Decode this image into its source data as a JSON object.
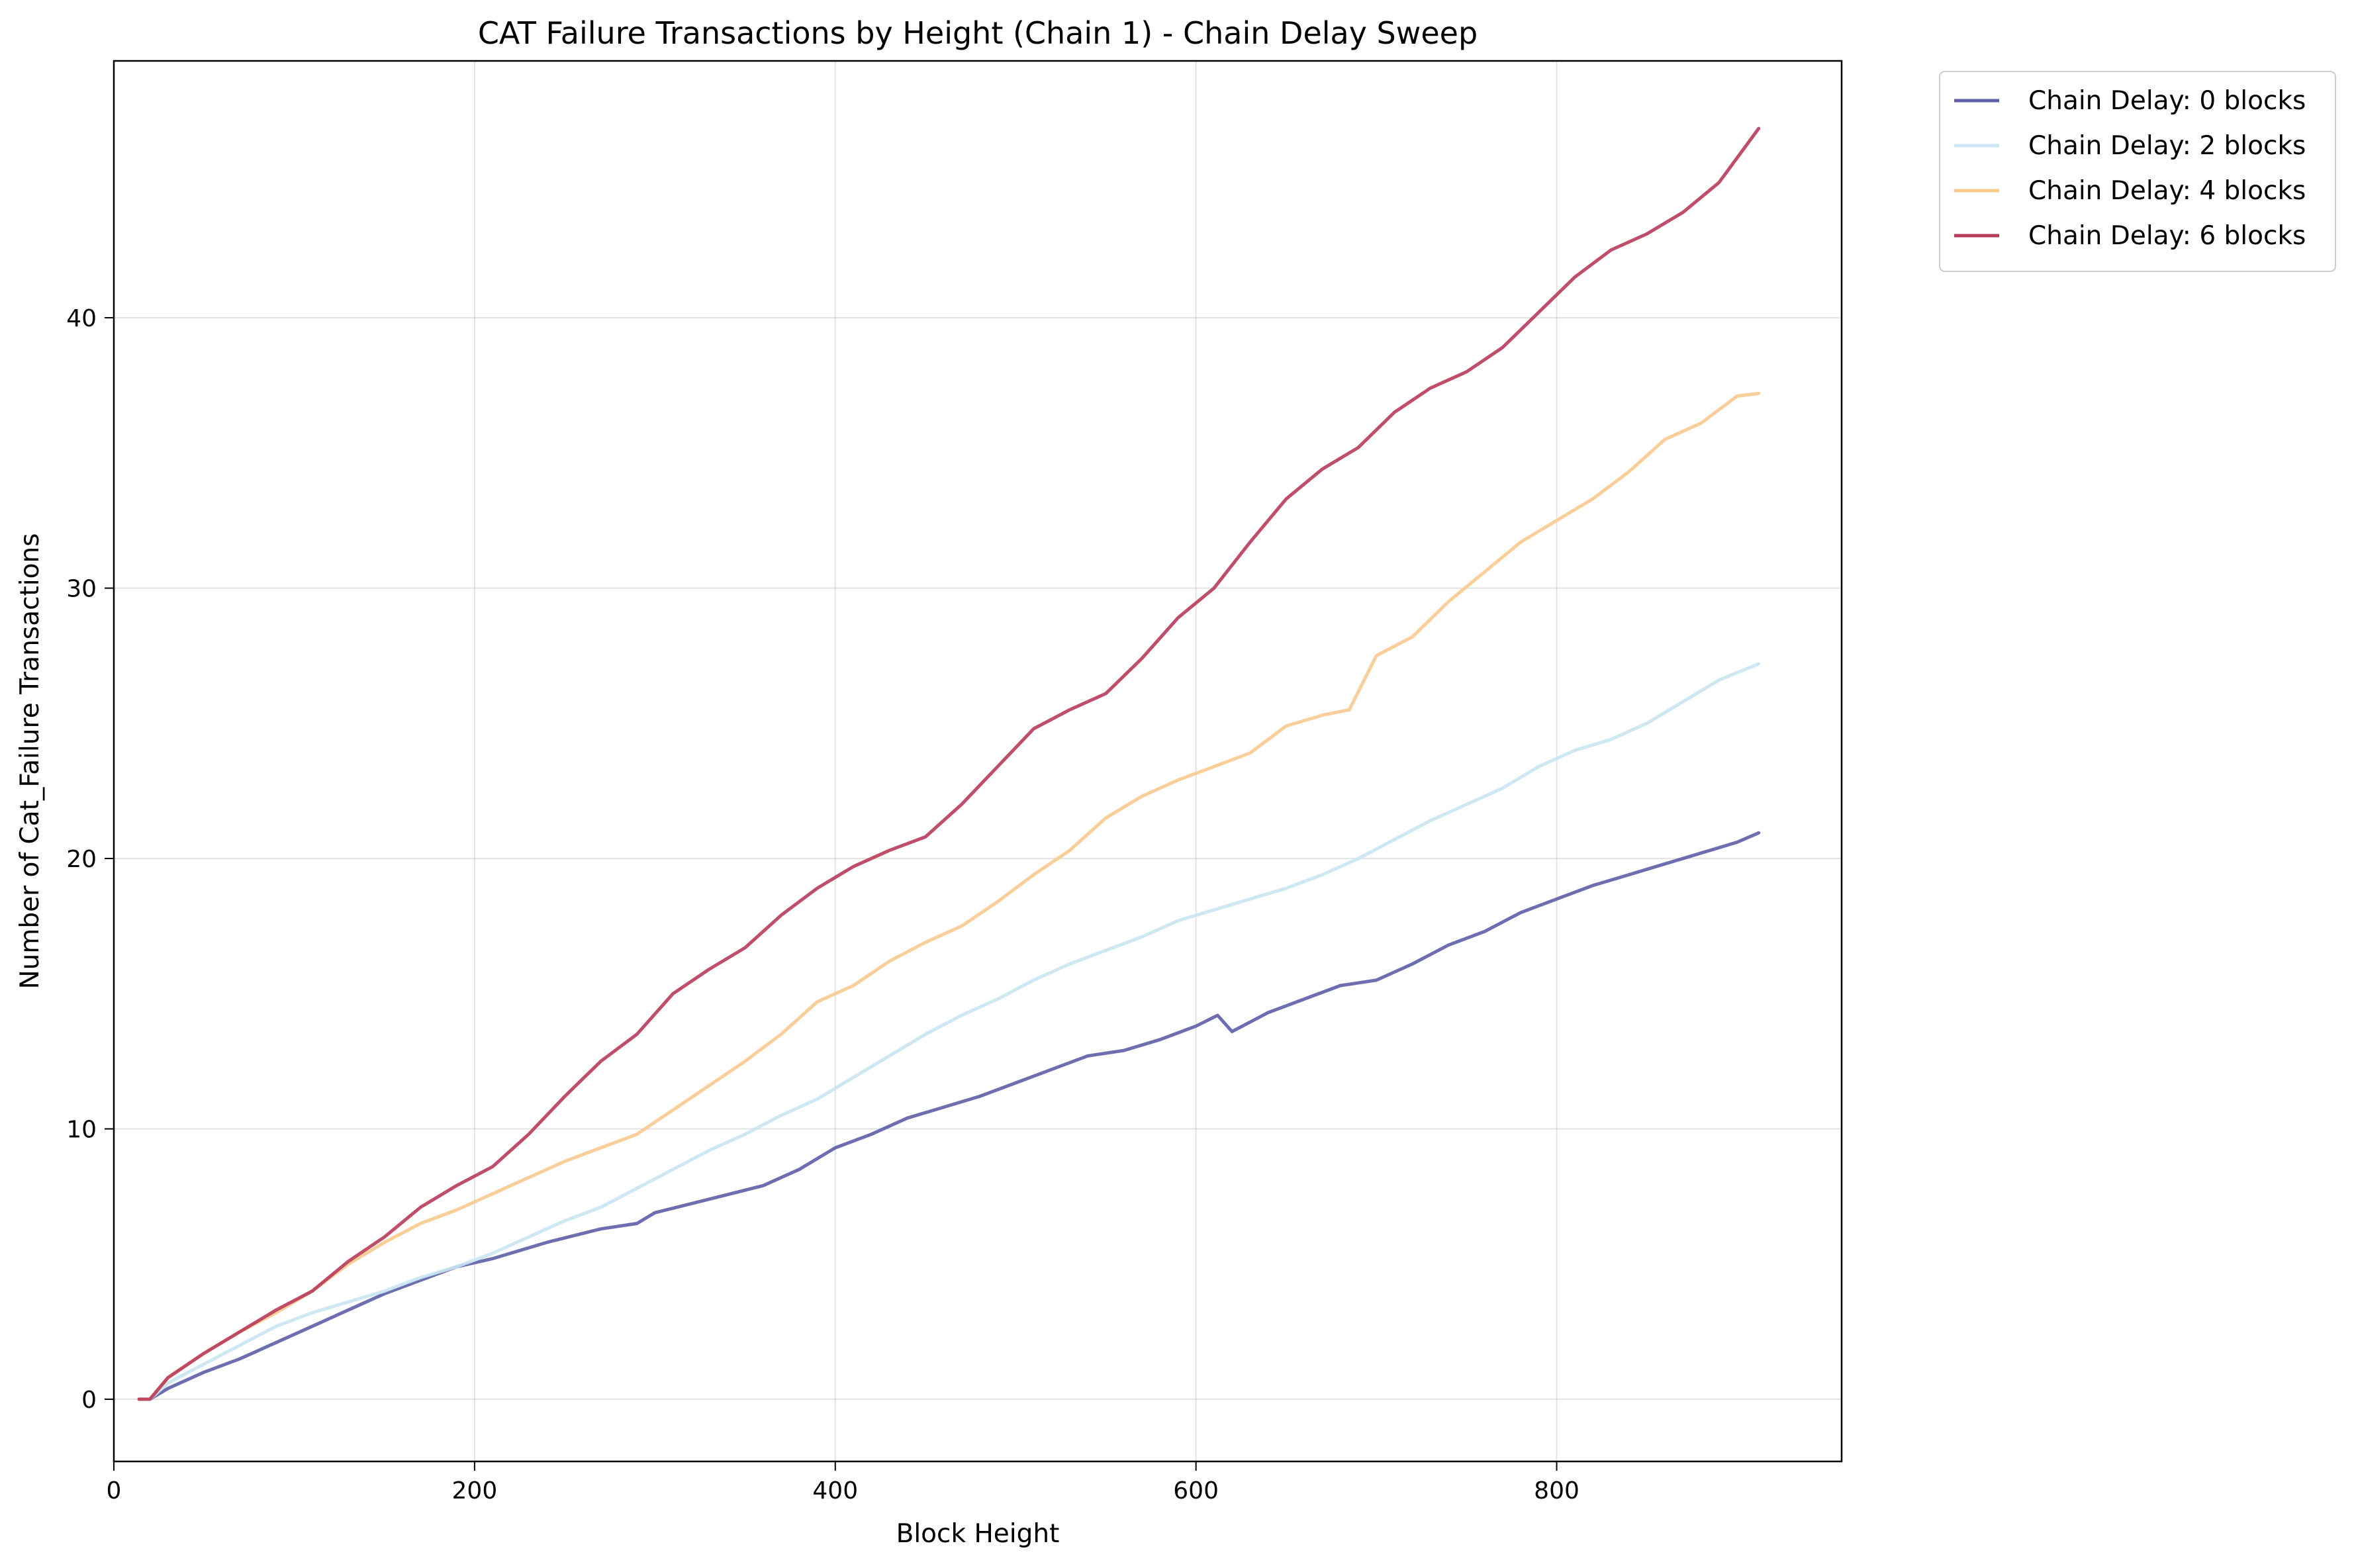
{
  "chart_data": {
    "type": "line",
    "title": "CAT Failure Transactions by Height (Chain 1) - Chain Delay Sweep",
    "xlabel": "Block Height",
    "ylabel": "Number of Cat_Failure Transactions",
    "xlim": [
      0,
      958
    ],
    "ylim": [
      -2.3,
      49.5
    ],
    "xticks": [
      0,
      200,
      400,
      600,
      800
    ],
    "yticks": [
      0,
      10,
      20,
      30,
      40
    ],
    "grid": true,
    "legend_position": "outside-top-right",
    "series": [
      {
        "name": "Chain Delay: 0 blocks",
        "color": "#5c5ea6",
        "points": [
          [
            14,
            0
          ],
          [
            20,
            0
          ],
          [
            30,
            0.4
          ],
          [
            50,
            1.0
          ],
          [
            70,
            1.5
          ],
          [
            90,
            2.1
          ],
          [
            110,
            2.7
          ],
          [
            130,
            3.3
          ],
          [
            150,
            3.9
          ],
          [
            170,
            4.4
          ],
          [
            190,
            4.9
          ],
          [
            210,
            5.2
          ],
          [
            240,
            5.8
          ],
          [
            270,
            6.3
          ],
          [
            290,
            6.5
          ],
          [
            300,
            6.9
          ],
          [
            330,
            7.4
          ],
          [
            360,
            7.9
          ],
          [
            380,
            8.5
          ],
          [
            400,
            9.3
          ],
          [
            420,
            9.8
          ],
          [
            440,
            10.4
          ],
          [
            460,
            10.8
          ],
          [
            480,
            11.2
          ],
          [
            500,
            11.7
          ],
          [
            520,
            12.2
          ],
          [
            540,
            12.7
          ],
          [
            560,
            12.9
          ],
          [
            580,
            13.3
          ],
          [
            600,
            13.8
          ],
          [
            612,
            14.2
          ],
          [
            620,
            13.6
          ],
          [
            640,
            14.3
          ],
          [
            660,
            14.8
          ],
          [
            680,
            15.3
          ],
          [
            700,
            15.5
          ],
          [
            720,
            16.1
          ],
          [
            740,
            16.8
          ],
          [
            760,
            17.3
          ],
          [
            780,
            18.0
          ],
          [
            800,
            18.5
          ],
          [
            820,
            19.0
          ],
          [
            840,
            19.4
          ],
          [
            860,
            19.8
          ],
          [
            880,
            20.2
          ],
          [
            900,
            20.6
          ],
          [
            912,
            20.95
          ]
        ]
      },
      {
        "name": "Chain Delay: 2 blocks",
        "color": "#c9e6f2",
        "points": [
          [
            14,
            0
          ],
          [
            20,
            0
          ],
          [
            30,
            0.6
          ],
          [
            50,
            1.3
          ],
          [
            70,
            2.0
          ],
          [
            90,
            2.7
          ],
          [
            110,
            3.2
          ],
          [
            130,
            3.6
          ],
          [
            150,
            4.0
          ],
          [
            170,
            4.5
          ],
          [
            190,
            4.9
          ],
          [
            210,
            5.4
          ],
          [
            230,
            6.0
          ],
          [
            250,
            6.6
          ],
          [
            270,
            7.1
          ],
          [
            290,
            7.8
          ],
          [
            310,
            8.5
          ],
          [
            330,
            9.2
          ],
          [
            350,
            9.8
          ],
          [
            370,
            10.5
          ],
          [
            390,
            11.1
          ],
          [
            410,
            11.9
          ],
          [
            430,
            12.7
          ],
          [
            450,
            13.5
          ],
          [
            470,
            14.2
          ],
          [
            490,
            14.8
          ],
          [
            510,
            15.5
          ],
          [
            530,
            16.1
          ],
          [
            550,
            16.6
          ],
          [
            570,
            17.1
          ],
          [
            590,
            17.7
          ],
          [
            610,
            18.1
          ],
          [
            630,
            18.5
          ],
          [
            650,
            18.9
          ],
          [
            670,
            19.4
          ],
          [
            690,
            20.0
          ],
          [
            710,
            20.7
          ],
          [
            730,
            21.4
          ],
          [
            750,
            22.0
          ],
          [
            770,
            22.6
          ],
          [
            790,
            23.4
          ],
          [
            810,
            24.0
          ],
          [
            830,
            24.4
          ],
          [
            850,
            25.0
          ],
          [
            870,
            25.8
          ],
          [
            890,
            26.6
          ],
          [
            912,
            27.2
          ]
        ]
      },
      {
        "name": "Chain Delay: 4 blocks",
        "color": "#f9c98e",
        "points": [
          [
            14,
            0
          ],
          [
            20,
            0
          ],
          [
            30,
            0.8
          ],
          [
            50,
            1.7
          ],
          [
            70,
            2.5
          ],
          [
            90,
            3.2
          ],
          [
            110,
            4.0
          ],
          [
            130,
            5.0
          ],
          [
            150,
            5.8
          ],
          [
            170,
            6.5
          ],
          [
            190,
            7.0
          ],
          [
            210,
            7.6
          ],
          [
            230,
            8.2
          ],
          [
            250,
            8.8
          ],
          [
            270,
            9.3
          ],
          [
            290,
            9.8
          ],
          [
            310,
            10.7
          ],
          [
            330,
            11.6
          ],
          [
            350,
            12.5
          ],
          [
            370,
            13.5
          ],
          [
            390,
            14.7
          ],
          [
            410,
            15.3
          ],
          [
            430,
            16.2
          ],
          [
            450,
            16.9
          ],
          [
            470,
            17.5
          ],
          [
            490,
            18.4
          ],
          [
            510,
            19.4
          ],
          [
            530,
            20.3
          ],
          [
            550,
            21.5
          ],
          [
            570,
            22.3
          ],
          [
            590,
            22.9
          ],
          [
            610,
            23.4
          ],
          [
            630,
            23.9
          ],
          [
            650,
            24.9
          ],
          [
            670,
            25.3
          ],
          [
            685,
            25.5
          ],
          [
            700,
            27.5
          ],
          [
            720,
            28.2
          ],
          [
            740,
            29.5
          ],
          [
            760,
            30.6
          ],
          [
            780,
            31.7
          ],
          [
            800,
            32.5
          ],
          [
            820,
            33.3
          ],
          [
            840,
            34.3
          ],
          [
            860,
            35.5
          ],
          [
            880,
            36.1
          ],
          [
            900,
            37.1
          ],
          [
            912,
            37.2
          ]
        ]
      },
      {
        "name": "Chain Delay: 6 blocks",
        "color": "#b73b5a",
        "points": [
          [
            14,
            0
          ],
          [
            20,
            0
          ],
          [
            30,
            0.8
          ],
          [
            50,
            1.7
          ],
          [
            70,
            2.5
          ],
          [
            90,
            3.3
          ],
          [
            110,
            4.0
          ],
          [
            130,
            5.1
          ],
          [
            150,
            6.0
          ],
          [
            170,
            7.1
          ],
          [
            190,
            7.9
          ],
          [
            210,
            8.6
          ],
          [
            230,
            9.8
          ],
          [
            250,
            11.2
          ],
          [
            270,
            12.5
          ],
          [
            290,
            13.5
          ],
          [
            310,
            15.0
          ],
          [
            330,
            15.9
          ],
          [
            350,
            16.7
          ],
          [
            370,
            17.9
          ],
          [
            390,
            18.9
          ],
          [
            410,
            19.7
          ],
          [
            430,
            20.3
          ],
          [
            450,
            20.8
          ],
          [
            470,
            22.0
          ],
          [
            490,
            23.4
          ],
          [
            510,
            24.8
          ],
          [
            530,
            25.5
          ],
          [
            550,
            26.1
          ],
          [
            570,
            27.4
          ],
          [
            590,
            28.9
          ],
          [
            610,
            30.0
          ],
          [
            630,
            31.7
          ],
          [
            650,
            33.3
          ],
          [
            670,
            34.4
          ],
          [
            690,
            35.2
          ],
          [
            710,
            36.5
          ],
          [
            730,
            37.4
          ],
          [
            750,
            38.0
          ],
          [
            770,
            38.9
          ],
          [
            790,
            40.2
          ],
          [
            810,
            41.5
          ],
          [
            830,
            42.5
          ],
          [
            850,
            43.1
          ],
          [
            870,
            43.9
          ],
          [
            890,
            45.0
          ],
          [
            912,
            47.0
          ]
        ]
      }
    ]
  }
}
